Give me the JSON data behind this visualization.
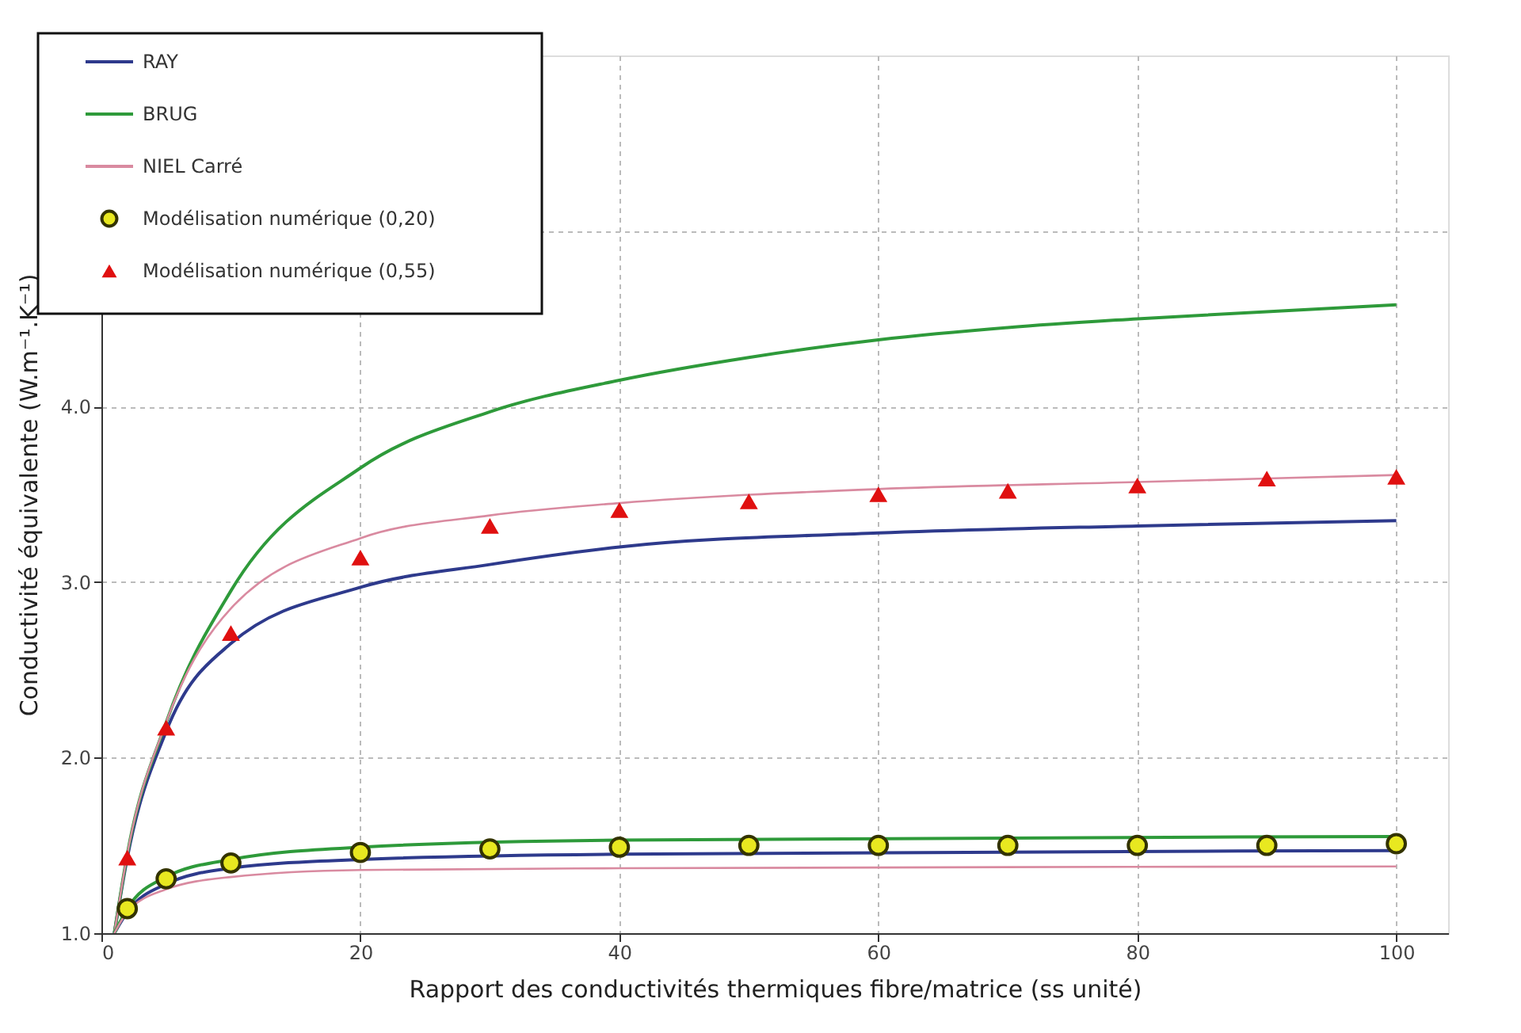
{
  "chart_data": {
    "type": "line",
    "xlabel": "Rapport des conductivités thermiques fibre/matrice (ss unité)",
    "ylabel": "Conductivité équivalente (W.m⁻¹.K⁻¹)",
    "xlim": [
      0,
      104
    ],
    "xticks": [
      0,
      20,
      40,
      60,
      80,
      100
    ],
    "ylim": [
      1,
      6
    ],
    "yticks": [
      {
        "value": 1,
        "label": "1.0"
      },
      {
        "value": 2,
        "label": "2.0"
      },
      {
        "value": 3,
        "label": "3.0"
      },
      {
        "value": 4,
        "label": "4.0"
      },
      {
        "value": 5,
        "label": null
      }
    ],
    "grid": true,
    "legend": "top left",
    "line_style": "solid",
    "series": [
      {
        "name": "RAY",
        "color": "#2e3a8c",
        "x": [
          1,
          2,
          5,
          10,
          20,
          30,
          40,
          60,
          80,
          100
        ],
        "values": [
          1.0,
          1.43,
          2.15,
          2.65,
          2.97,
          3.1,
          3.2,
          3.28,
          3.32,
          3.35
        ]
      },
      {
        "name": "BRUG",
        "color": "#2e9a3a",
        "x": [
          1,
          2,
          5,
          10,
          20,
          30,
          40,
          50,
          60,
          70,
          80,
          100
        ],
        "values": [
          1.0,
          1.45,
          2.2,
          2.95,
          3.65,
          3.97,
          4.15,
          4.28,
          4.38,
          4.45,
          4.5,
          4.58
        ]
      },
      {
        "name": "NIEL Carré",
        "color": "#d98aa0",
        "x": [
          1,
          2,
          5,
          10,
          20,
          30,
          40,
          60,
          80,
          100
        ],
        "values": [
          1.0,
          1.45,
          2.2,
          2.85,
          3.25,
          3.38,
          3.45,
          3.53,
          3.57,
          3.61
        ]
      },
      {
        "color": "#2e3a8c",
        "x": [
          1,
          2,
          5,
          10,
          20,
          40,
          100
        ],
        "values": [
          1.0,
          1.12,
          1.28,
          1.37,
          1.42,
          1.45,
          1.47
        ]
      },
      {
        "color": "#2e9a3a",
        "x": [
          1,
          2,
          5,
          10,
          20,
          40,
          100
        ],
        "values": [
          1.0,
          1.14,
          1.32,
          1.42,
          1.49,
          1.53,
          1.55
        ]
      },
      {
        "color": "#d98aa0",
        "x": [
          1,
          2,
          5,
          10,
          20,
          40,
          100
        ],
        "values": [
          1.0,
          1.12,
          1.25,
          1.32,
          1.36,
          1.37,
          1.38
        ]
      },
      {
        "name": "Modélisation numérique (0,20)",
        "color": "#e8e820",
        "type": "scatter",
        "marker": "circle",
        "x": [
          2,
          5,
          10,
          20,
          30,
          40,
          50,
          60,
          70,
          80,
          90,
          100
        ],
        "values": [
          1.14,
          1.31,
          1.4,
          1.46,
          1.48,
          1.49,
          1.5,
          1.5,
          1.5,
          1.5,
          1.5,
          1.51
        ]
      },
      {
        "name": "Modélisation numérique (0,55)",
        "color": "#e01010",
        "type": "scatter",
        "marker": "triangle",
        "x": [
          2,
          5,
          10,
          20,
          30,
          40,
          50,
          60,
          70,
          80,
          90,
          100
        ],
        "values": [
          1.43,
          2.17,
          2.71,
          3.14,
          3.32,
          3.41,
          3.46,
          3.5,
          3.52,
          3.55,
          3.59,
          3.6
        ]
      }
    ]
  }
}
